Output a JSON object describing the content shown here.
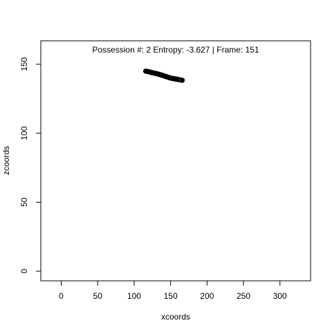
{
  "chart_data": {
    "type": "scatter",
    "title": "Possession #: 2 Entropy: -3.627 | Frame: 151",
    "xlabel": "xcoords",
    "ylabel": "zcoords",
    "xlim": [
      -28,
      342
    ],
    "ylim": [
      -7,
      167
    ],
    "xticks": [
      0,
      50,
      100,
      150,
      200,
      250,
      300
    ],
    "yticks": [
      0,
      50,
      100,
      150
    ],
    "grid": false,
    "legend": "none",
    "point_color": "#000000",
    "series": [
      {
        "x": [
          116,
          118,
          120,
          122,
          124,
          126,
          128,
          130,
          132,
          134,
          136,
          138,
          140,
          142,
          144,
          146,
          148,
          150,
          152,
          154,
          156,
          158,
          160,
          162,
          164,
          166
        ],
        "y": [
          145.0,
          144.8,
          144.6,
          144.3,
          144.0,
          143.8,
          143.5,
          143.3,
          143.0,
          142.7,
          142.4,
          142.1,
          141.8,
          141.4,
          141.0,
          140.7,
          140.3,
          140.0,
          139.8,
          139.6,
          139.4,
          139.2,
          139.0,
          138.8,
          138.6,
          138.4
        ]
      }
    ]
  }
}
